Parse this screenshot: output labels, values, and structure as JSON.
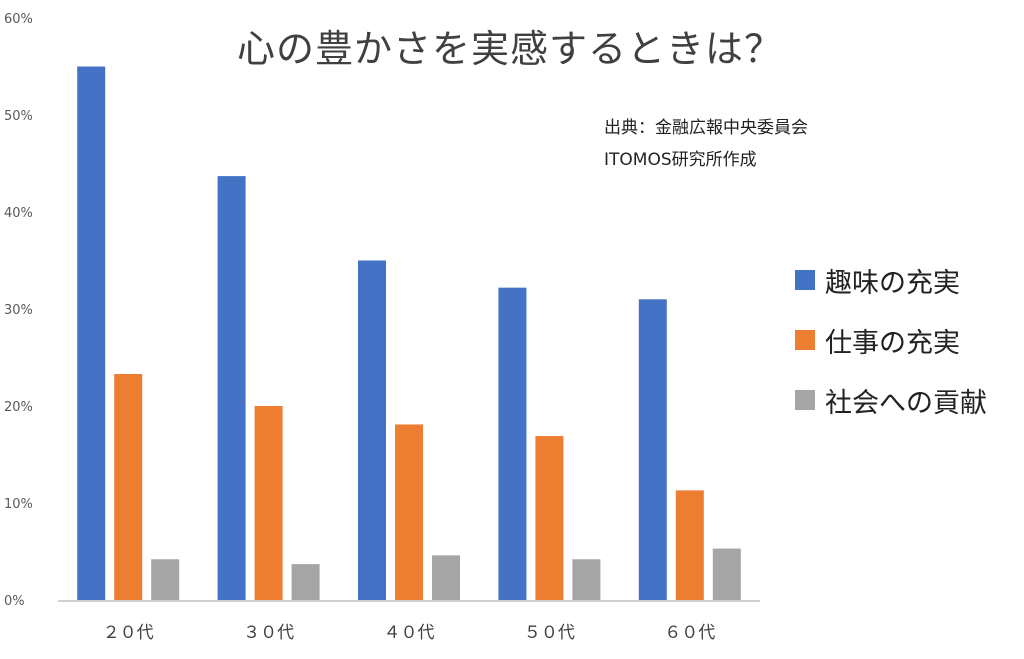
{
  "chart_data": {
    "type": "bar",
    "title": "心の豊かさを実感するときは？",
    "source_lines": [
      "出典：金融広報中央委員会",
      "ITOMOS研究所作成"
    ],
    "categories": [
      "２０代",
      "３０代",
      "４０代",
      "５０代",
      "６０代"
    ],
    "series": [
      {
        "name": "趣味の充実",
        "color": "#4472C4",
        "values": [
          55,
          43.7,
          35,
          32.2,
          31
        ]
      },
      {
        "name": "仕事の充実",
        "color": "#ED7D31",
        "values": [
          23.3,
          20,
          18.1,
          16.9,
          11.3
        ]
      },
      {
        "name": "社会への貢献",
        "color": "#A5A5A5",
        "values": [
          4.2,
          3.7,
          4.6,
          4.2,
          5.3
        ]
      }
    ],
    "ylim": [
      0,
      60
    ],
    "yticks": [
      "0%",
      "10%",
      "20%",
      "30%",
      "40%",
      "50%",
      "60%"
    ],
    "legend_position": "right"
  }
}
